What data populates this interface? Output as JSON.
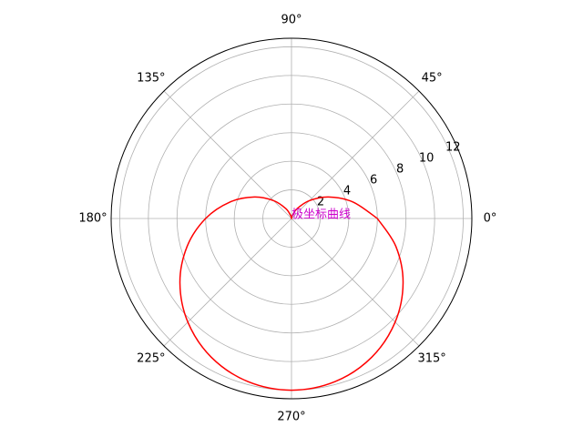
{
  "chart_data": {
    "type": "polar-line",
    "annotation": "极坐标曲线",
    "annotation_color": "#cc00cc",
    "x": [
      0,
      15,
      30,
      45,
      60,
      75,
      90,
      105,
      120,
      135,
      150,
      165,
      180,
      195,
      210,
      225,
      240,
      255,
      270,
      285,
      300,
      315,
      330,
      345,
      360
    ],
    "series": [
      {
        "color": "#ff0000",
        "values": [
          6,
          4.45,
          3,
          1.76,
          0.8,
          0.2,
          0,
          0.2,
          0.8,
          1.76,
          3,
          4.45,
          6,
          7.55,
          9,
          10.24,
          11.2,
          11.8,
          12,
          11.8,
          11.2,
          10.24,
          9,
          7.55,
          6
        ]
      }
    ],
    "ylim": [
      0,
      12.6
    ],
    "yticks": [
      2,
      4,
      6,
      8,
      10,
      12
    ],
    "xticks": [
      {
        "value": 0,
        "label": "0°"
      },
      {
        "value": 45,
        "label": "45°"
      },
      {
        "value": 90,
        "label": "90°"
      },
      {
        "value": 135,
        "label": "135°"
      },
      {
        "value": 180,
        "label": "180°"
      },
      {
        "value": 225,
        "label": "225°"
      },
      {
        "value": 270,
        "label": "270°"
      },
      {
        "value": 315,
        "label": "315°"
      }
    ],
    "grid": true
  }
}
